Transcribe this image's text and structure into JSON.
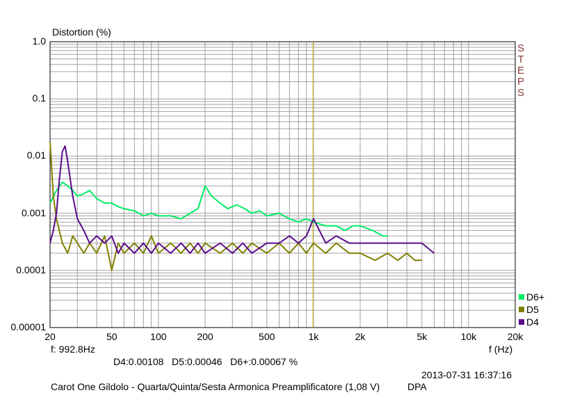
{
  "chart_data": {
    "type": "line",
    "title": "Distortion (%)",
    "xlabel": "f (Hz)",
    "x_scale": "log",
    "y_scale": "log",
    "xlim": [
      20,
      20000
    ],
    "ylim": [
      1e-05,
      1.0
    ],
    "grid": true,
    "legend_position": "right",
    "x_ticks": [
      "20",
      "50",
      "100",
      "200",
      "500",
      "1k",
      "2k",
      "5k",
      "10k",
      "20k"
    ],
    "y_ticks": [
      "1.0",
      "0.1",
      "0.01",
      "0.001",
      "0.0001",
      "0.00001"
    ],
    "cursor_frequency_hz": 992.8,
    "series": [
      {
        "name": "D6+",
        "color": "#00ee66",
        "x": [
          20,
          22,
          24,
          26,
          28,
          30,
          33,
          36,
          40,
          45,
          50,
          55,
          60,
          70,
          80,
          90,
          100,
          120,
          140,
          160,
          180,
          200,
          220,
          250,
          280,
          320,
          360,
          400,
          450,
          500,
          600,
          700,
          800,
          900,
          1000,
          1200,
          1400,
          1600,
          1800,
          2000,
          2400,
          2800,
          3000
        ],
        "values": [
          0.0015,
          0.0025,
          0.0035,
          0.003,
          0.0025,
          0.002,
          0.0022,
          0.0025,
          0.0018,
          0.0015,
          0.0015,
          0.0013,
          0.0012,
          0.0011,
          0.0009,
          0.001,
          0.0009,
          0.0009,
          0.0008,
          0.001,
          0.0012,
          0.003,
          0.002,
          0.0015,
          0.0012,
          0.0014,
          0.0012,
          0.001,
          0.0011,
          0.0009,
          0.001,
          0.0008,
          0.0007,
          0.0008,
          0.0007,
          0.0006,
          0.0006,
          0.0005,
          0.0006,
          0.0006,
          0.0005,
          0.0004,
          0.0004
        ]
      },
      {
        "name": "D5",
        "color": "#808000",
        "x": [
          20,
          21,
          22,
          24,
          26,
          28,
          30,
          33,
          36,
          40,
          45,
          50,
          55,
          60,
          70,
          80,
          90,
          100,
          120,
          140,
          160,
          180,
          200,
          250,
          300,
          350,
          400,
          500,
          600,
          700,
          800,
          900,
          1000,
          1200,
          1400,
          1700,
          2000,
          2500,
          3000,
          3500,
          4000,
          4500,
          5000
        ],
        "values": [
          0.018,
          0.002,
          0.0008,
          0.0003,
          0.0002,
          0.0004,
          0.0003,
          0.0002,
          0.0003,
          0.0002,
          0.0004,
          0.0001,
          0.0003,
          0.0002,
          0.0003,
          0.0002,
          0.0004,
          0.0002,
          0.0003,
          0.0002,
          0.0003,
          0.0002,
          0.0003,
          0.0002,
          0.0003,
          0.0002,
          0.0003,
          0.0002,
          0.0003,
          0.0002,
          0.0003,
          0.0002,
          0.0003,
          0.0002,
          0.0003,
          0.0002,
          0.0002,
          0.00015,
          0.0002,
          0.00015,
          0.0002,
          0.00015,
          0.00015
        ]
      },
      {
        "name": "D4",
        "color": "#5a0a8a",
        "x": [
          20,
          21,
          22,
          23,
          24,
          25,
          26,
          28,
          30,
          33,
          36,
          40,
          45,
          50,
          55,
          60,
          70,
          80,
          90,
          100,
          120,
          140,
          160,
          180,
          200,
          250,
          300,
          350,
          400,
          500,
          600,
          700,
          800,
          900,
          1000,
          1200,
          1400,
          1700,
          2000,
          2500,
          3000,
          3500,
          4000,
          5000,
          6000
        ],
        "values": [
          0.0003,
          0.0005,
          0.001,
          0.004,
          0.012,
          0.015,
          0.008,
          0.002,
          0.0008,
          0.0005,
          0.0003,
          0.0004,
          0.0003,
          0.0004,
          0.0002,
          0.0003,
          0.0002,
          0.0003,
          0.0002,
          0.0003,
          0.0002,
          0.0003,
          0.0002,
          0.0003,
          0.0002,
          0.0003,
          0.0002,
          0.0003,
          0.0002,
          0.0003,
          0.0003,
          0.0004,
          0.0003,
          0.0004,
          0.0008,
          0.0003,
          0.0004,
          0.0003,
          0.0003,
          0.0003,
          0.0003,
          0.0003,
          0.0003,
          0.0003,
          0.0002
        ]
      }
    ]
  },
  "readout": {
    "frequency": "f: 992.8Hz",
    "values": "D4:0.00108   D5:0.00046   D6+:0.00067 %"
  },
  "footer": {
    "timestamp": "2013-07-31 16:37:16",
    "description": "Carot One Gildolo - Quarta/Quinta/Sesta Armonica Preamplificatore (1,08 V)",
    "tag": "DPA"
  },
  "side_label": {
    "letters": [
      "S",
      "T",
      "E",
      "P",
      "S"
    ],
    "color": "#8b3a3a"
  },
  "cursor_color": "#c8b400",
  "grid_color": "#a0a0a0"
}
